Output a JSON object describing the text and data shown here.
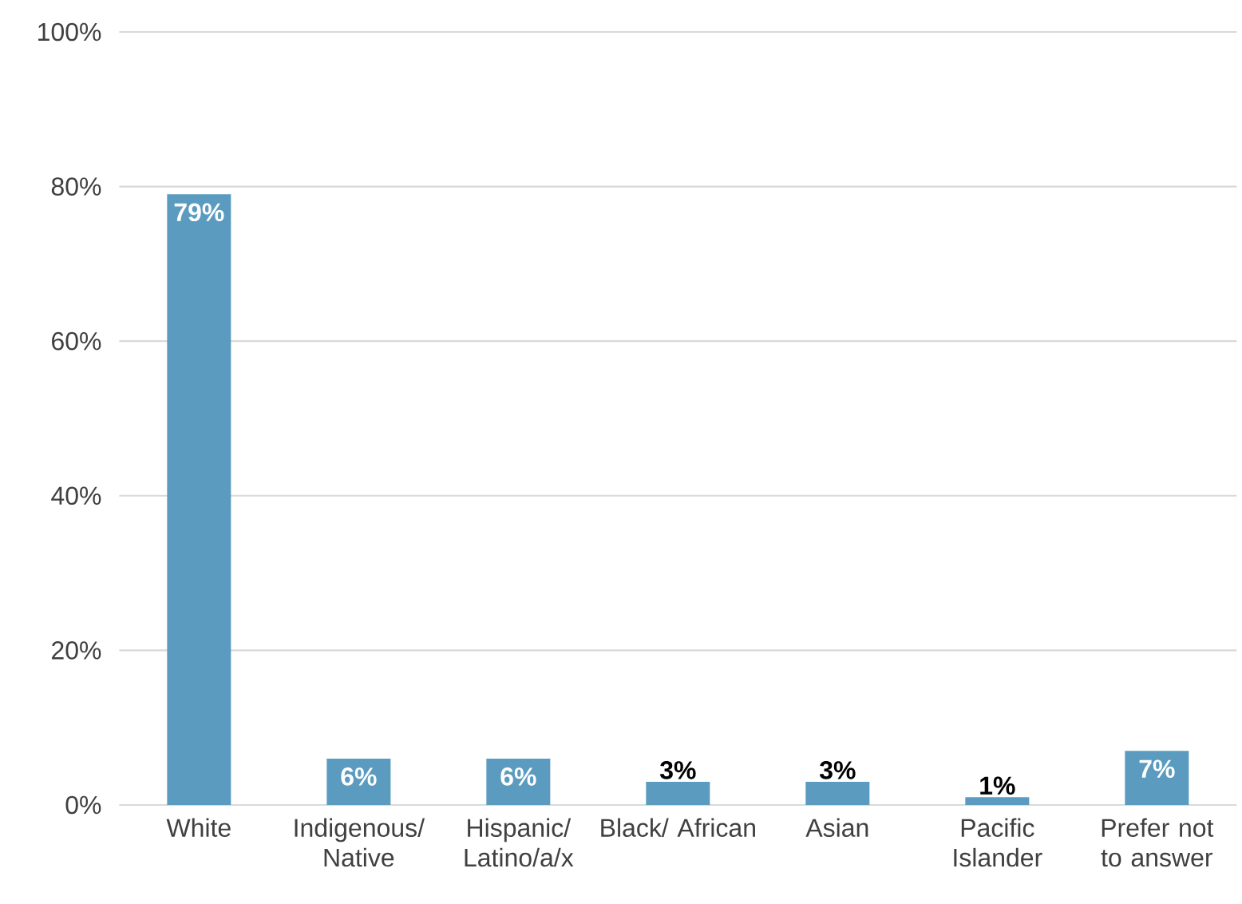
{
  "chart_data": {
    "type": "bar",
    "categories": [
      "White",
      "Indigenous/ Native",
      "Hispanic/ Latino/a/x",
      "Black/ African",
      "Asian",
      "Pacific Islander",
      "Prefer not to answer"
    ],
    "values": [
      79,
      6,
      6,
      3,
      3,
      1,
      7
    ],
    "value_labels": [
      "79%",
      "6%",
      "6%",
      "3%",
      "3%",
      "1%",
      "7%"
    ],
    "color": "#5a9bbf",
    "ylim": [
      0,
      100
    ],
    "yticks": [
      {
        "value": 0,
        "label": "0%"
      },
      {
        "value": 20,
        "label": "20%"
      },
      {
        "value": 40,
        "label": "40%"
      },
      {
        "value": 60,
        "label": "60%"
      },
      {
        "value": 80,
        "label": "80%"
      },
      {
        "value": 100,
        "label": "100%"
      }
    ],
    "grid": "y"
  }
}
